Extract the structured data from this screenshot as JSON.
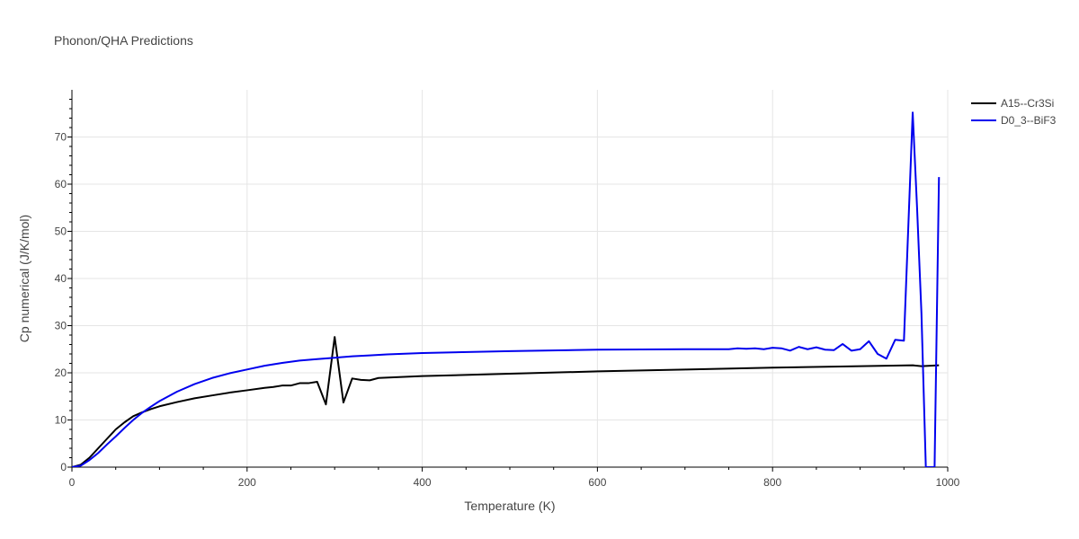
{
  "chart_data": {
    "type": "line",
    "title": "Phonon/QHA Predictions",
    "xlabel": "Temperature (K)",
    "ylabel": "Cp numerical (J/K/mol)",
    "xlim": [
      0,
      1000
    ],
    "ylim": [
      0,
      80
    ],
    "xticks": [
      0,
      200,
      400,
      600,
      800,
      1000
    ],
    "yticks": [
      0,
      10,
      20,
      30,
      40,
      50,
      60,
      70
    ],
    "grid": true,
    "legend_position": "top-right",
    "series": [
      {
        "name": "A15--Cr3Si",
        "color": "#000000",
        "x": [
          0,
          10,
          20,
          30,
          40,
          50,
          60,
          70,
          80,
          90,
          100,
          120,
          140,
          160,
          180,
          200,
          220,
          230,
          240,
          250,
          260,
          270,
          280,
          290,
          300,
          310,
          320,
          330,
          340,
          350,
          400,
          500,
          600,
          700,
          800,
          900,
          960,
          970,
          990
        ],
        "y": [
          0,
          0.5,
          2.0,
          4.0,
          6.0,
          8.0,
          9.5,
          10.8,
          11.6,
          12.3,
          12.9,
          13.8,
          14.6,
          15.2,
          15.8,
          16.3,
          16.8,
          17.0,
          17.3,
          17.3,
          17.8,
          17.8,
          18.1,
          13.3,
          27.6,
          13.7,
          18.8,
          18.5,
          18.4,
          18.9,
          19.3,
          19.8,
          20.3,
          20.7,
          21.1,
          21.4,
          21.6,
          21.4,
          21.6
        ]
      },
      {
        "name": "D0_3--BiF3",
        "color": "#0000ee",
        "x": [
          0,
          10,
          20,
          30,
          40,
          50,
          60,
          70,
          80,
          90,
          100,
          120,
          140,
          160,
          180,
          200,
          220,
          240,
          260,
          280,
          300,
          320,
          340,
          360,
          400,
          500,
          600,
          700,
          750,
          760,
          770,
          780,
          790,
          800,
          810,
          820,
          830,
          840,
          850,
          860,
          870,
          880,
          890,
          900,
          910,
          920,
          930,
          940,
          950,
          960,
          965,
          970,
          975,
          985,
          990
        ],
        "y": [
          0,
          0.3,
          1.5,
          3.0,
          4.8,
          6.5,
          8.3,
          10.0,
          11.5,
          12.8,
          14.0,
          16.0,
          17.6,
          18.9,
          19.9,
          20.7,
          21.5,
          22.1,
          22.6,
          22.9,
          23.2,
          23.5,
          23.7,
          23.9,
          24.2,
          24.6,
          24.9,
          25.0,
          25.0,
          25.2,
          25.1,
          25.2,
          25.0,
          25.3,
          25.2,
          24.7,
          25.5,
          25.0,
          25.4,
          24.9,
          24.8,
          26.1,
          24.7,
          25.0,
          26.7,
          24.0,
          23.0,
          27.0,
          26.8,
          75.2,
          55.0,
          32.6,
          0,
          0,
          61.5
        ]
      }
    ]
  }
}
